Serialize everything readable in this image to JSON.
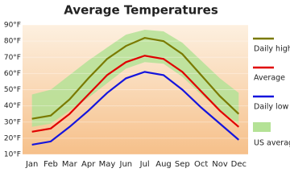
{
  "chart_data": {
    "type": "line",
    "title": "Average Temperatures",
    "categories": [
      "Jan",
      "Feb",
      "Mar",
      "Apr",
      "May",
      "Jun",
      "Jul",
      "Aug",
      "Sep",
      "Oct",
      "Nov",
      "Dec"
    ],
    "series": [
      {
        "name": "Daily high",
        "color": "#7a7a00",
        "values": [
          32,
          34,
          44,
          57,
          69,
          77,
          82,
          80,
          72,
          59,
          46,
          35
        ]
      },
      {
        "name": "Average",
        "color": "#e00000",
        "values": [
          24,
          26,
          35,
          47,
          59,
          67,
          71,
          69,
          61,
          49,
          37,
          27
        ]
      },
      {
        "name": "Daily low",
        "color": "#1515dd",
        "values": [
          16,
          18,
          27,
          37,
          48,
          57,
          61,
          59,
          50,
          39,
          29,
          19
        ]
      },
      {
        "name": "US average",
        "color": "#b4e296",
        "band": true,
        "values": [
          47,
          50,
          59,
          68,
          76,
          84,
          87,
          86,
          79,
          68,
          57,
          48
        ],
        "low": [
          27,
          29,
          37,
          45,
          54,
          63,
          67,
          66,
          58,
          47,
          37,
          29
        ]
      }
    ],
    "ylim": [
      10,
      90
    ],
    "yticks": [
      {
        "value": 10,
        "label": "10°F"
      },
      {
        "value": 20,
        "label": "20°F"
      },
      {
        "value": 30,
        "label": "30°F"
      },
      {
        "value": 40,
        "label": "40°F"
      },
      {
        "value": 50,
        "label": "50°F"
      },
      {
        "value": 60,
        "label": "60°F"
      },
      {
        "value": 70,
        "label": "70°F"
      },
      {
        "value": 80,
        "label": "80°F"
      },
      {
        "value": 90,
        "label": "90°F"
      }
    ],
    "grid": true
  }
}
